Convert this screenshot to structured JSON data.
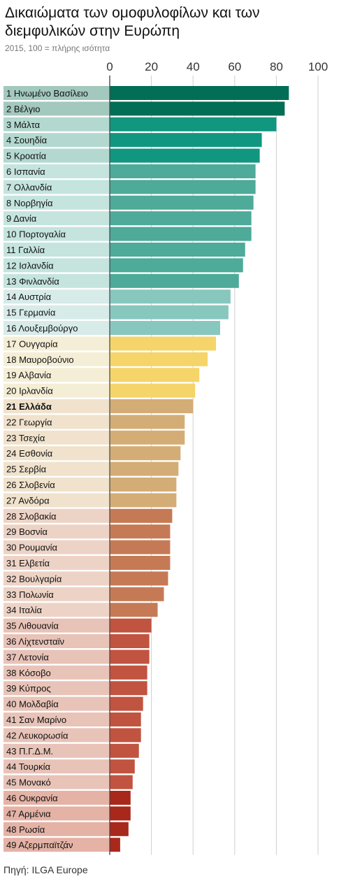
{
  "title": "Δικαιώματα των ομοφυλοφίλων και των διεμφυλικών στην Ευρώπη",
  "subtitle": "2015, 100 = πλήρης ισότητα",
  "source": "Πηγή: ILGA Europe",
  "chart_data": {
    "type": "bar",
    "orientation": "horizontal",
    "xlim": [
      0,
      100
    ],
    "xticks": [
      "0",
      "20",
      "40",
      "60",
      "80",
      "100"
    ],
    "grid": true,
    "categories": [
      "1 Ηνωμένο Βασίλειο",
      "2 Βέλγιο",
      "3 Μάλτα",
      "4 Σουηδία",
      "5 Κροατία",
      "6 Ισπανία",
      "7 Ολλανδία",
      "8 Νορβηγία",
      "9 Δανία",
      "10 Πορτογαλία",
      "11 Γαλλία",
      "12 Ισλανδία",
      "13 Φινλανδία",
      "14 Αυστρία",
      "15 Γερμανία",
      "16 Λουξεμβούργο",
      "17 Ουγγαρία",
      "18 Μαυροβούνιο",
      "19 Αλβανία",
      "20 Ιρλανδία",
      "21 Ελλάδα",
      "22 Γεωργία",
      "23 Τσεχία",
      "24 Εσθονία",
      "25 Σερβία",
      "26 Σλοβενία",
      "27 Ανδόρα",
      "28 Σλοβακία",
      "29 Βοσνία",
      "30 Ρουμανία",
      "31 Ελβετία",
      "32 Βουλγαρία",
      "33 Πολωνία",
      "34 Ιταλία",
      "35 Λιθουανία",
      "36 Λίχτενσταϊν",
      "37 Λετονία",
      "38 Κόσοβο",
      "39 Κύπρος",
      "40 Μολδαβία",
      "41 Σαν Μαρίνο",
      "42 Λευκορωσία",
      "43 Π.Γ.Δ.Μ.",
      "44 Τουρκία",
      "45 Μονακό",
      "46 Ουκρανία",
      "47 Αρμένια",
      "48 Ρωσία",
      "49 Αζερμπαϊτζάν"
    ],
    "values": [
      86,
      84,
      80,
      73,
      72,
      70,
      70,
      69,
      68,
      68,
      65,
      64,
      62,
      58,
      57,
      53,
      51,
      47,
      43,
      41,
      40,
      36,
      36,
      34,
      33,
      32,
      32,
      30,
      29,
      29,
      29,
      28,
      26,
      23,
      20,
      19,
      19,
      18,
      18,
      16,
      15,
      15,
      14,
      12,
      11,
      10,
      10,
      9,
      5
    ],
    "highlight_index": 20,
    "group_colors": [
      {
        "from": 0,
        "to": 1,
        "bar": "#026e56",
        "label_bg": "#a3c8be"
      },
      {
        "from": 2,
        "to": 4,
        "bar": "#119680",
        "label_bg": "#b3d8cf"
      },
      {
        "from": 5,
        "to": 12,
        "bar": "#4eaa99",
        "label_bg": "#c5e4de"
      },
      {
        "from": 13,
        "to": 15,
        "bar": "#88c7be",
        "label_bg": "#d7ebe9"
      },
      {
        "from": 16,
        "to": 19,
        "bar": "#f5d469",
        "label_bg": "#f5eed6"
      },
      {
        "from": 20,
        "to": 26,
        "bar": "#d4ad76",
        "label_bg": "#f0e2cc"
      },
      {
        "from": 27,
        "to": 33,
        "bar": "#c57a55",
        "label_bg": "#edd3c6"
      },
      {
        "from": 34,
        "to": 44,
        "bar": "#c05440",
        "label_bg": "#e8c3b8"
      },
      {
        "from": 45,
        "to": 48,
        "bar": "#a8281c",
        "label_bg": "#e4b3a6"
      }
    ]
  }
}
